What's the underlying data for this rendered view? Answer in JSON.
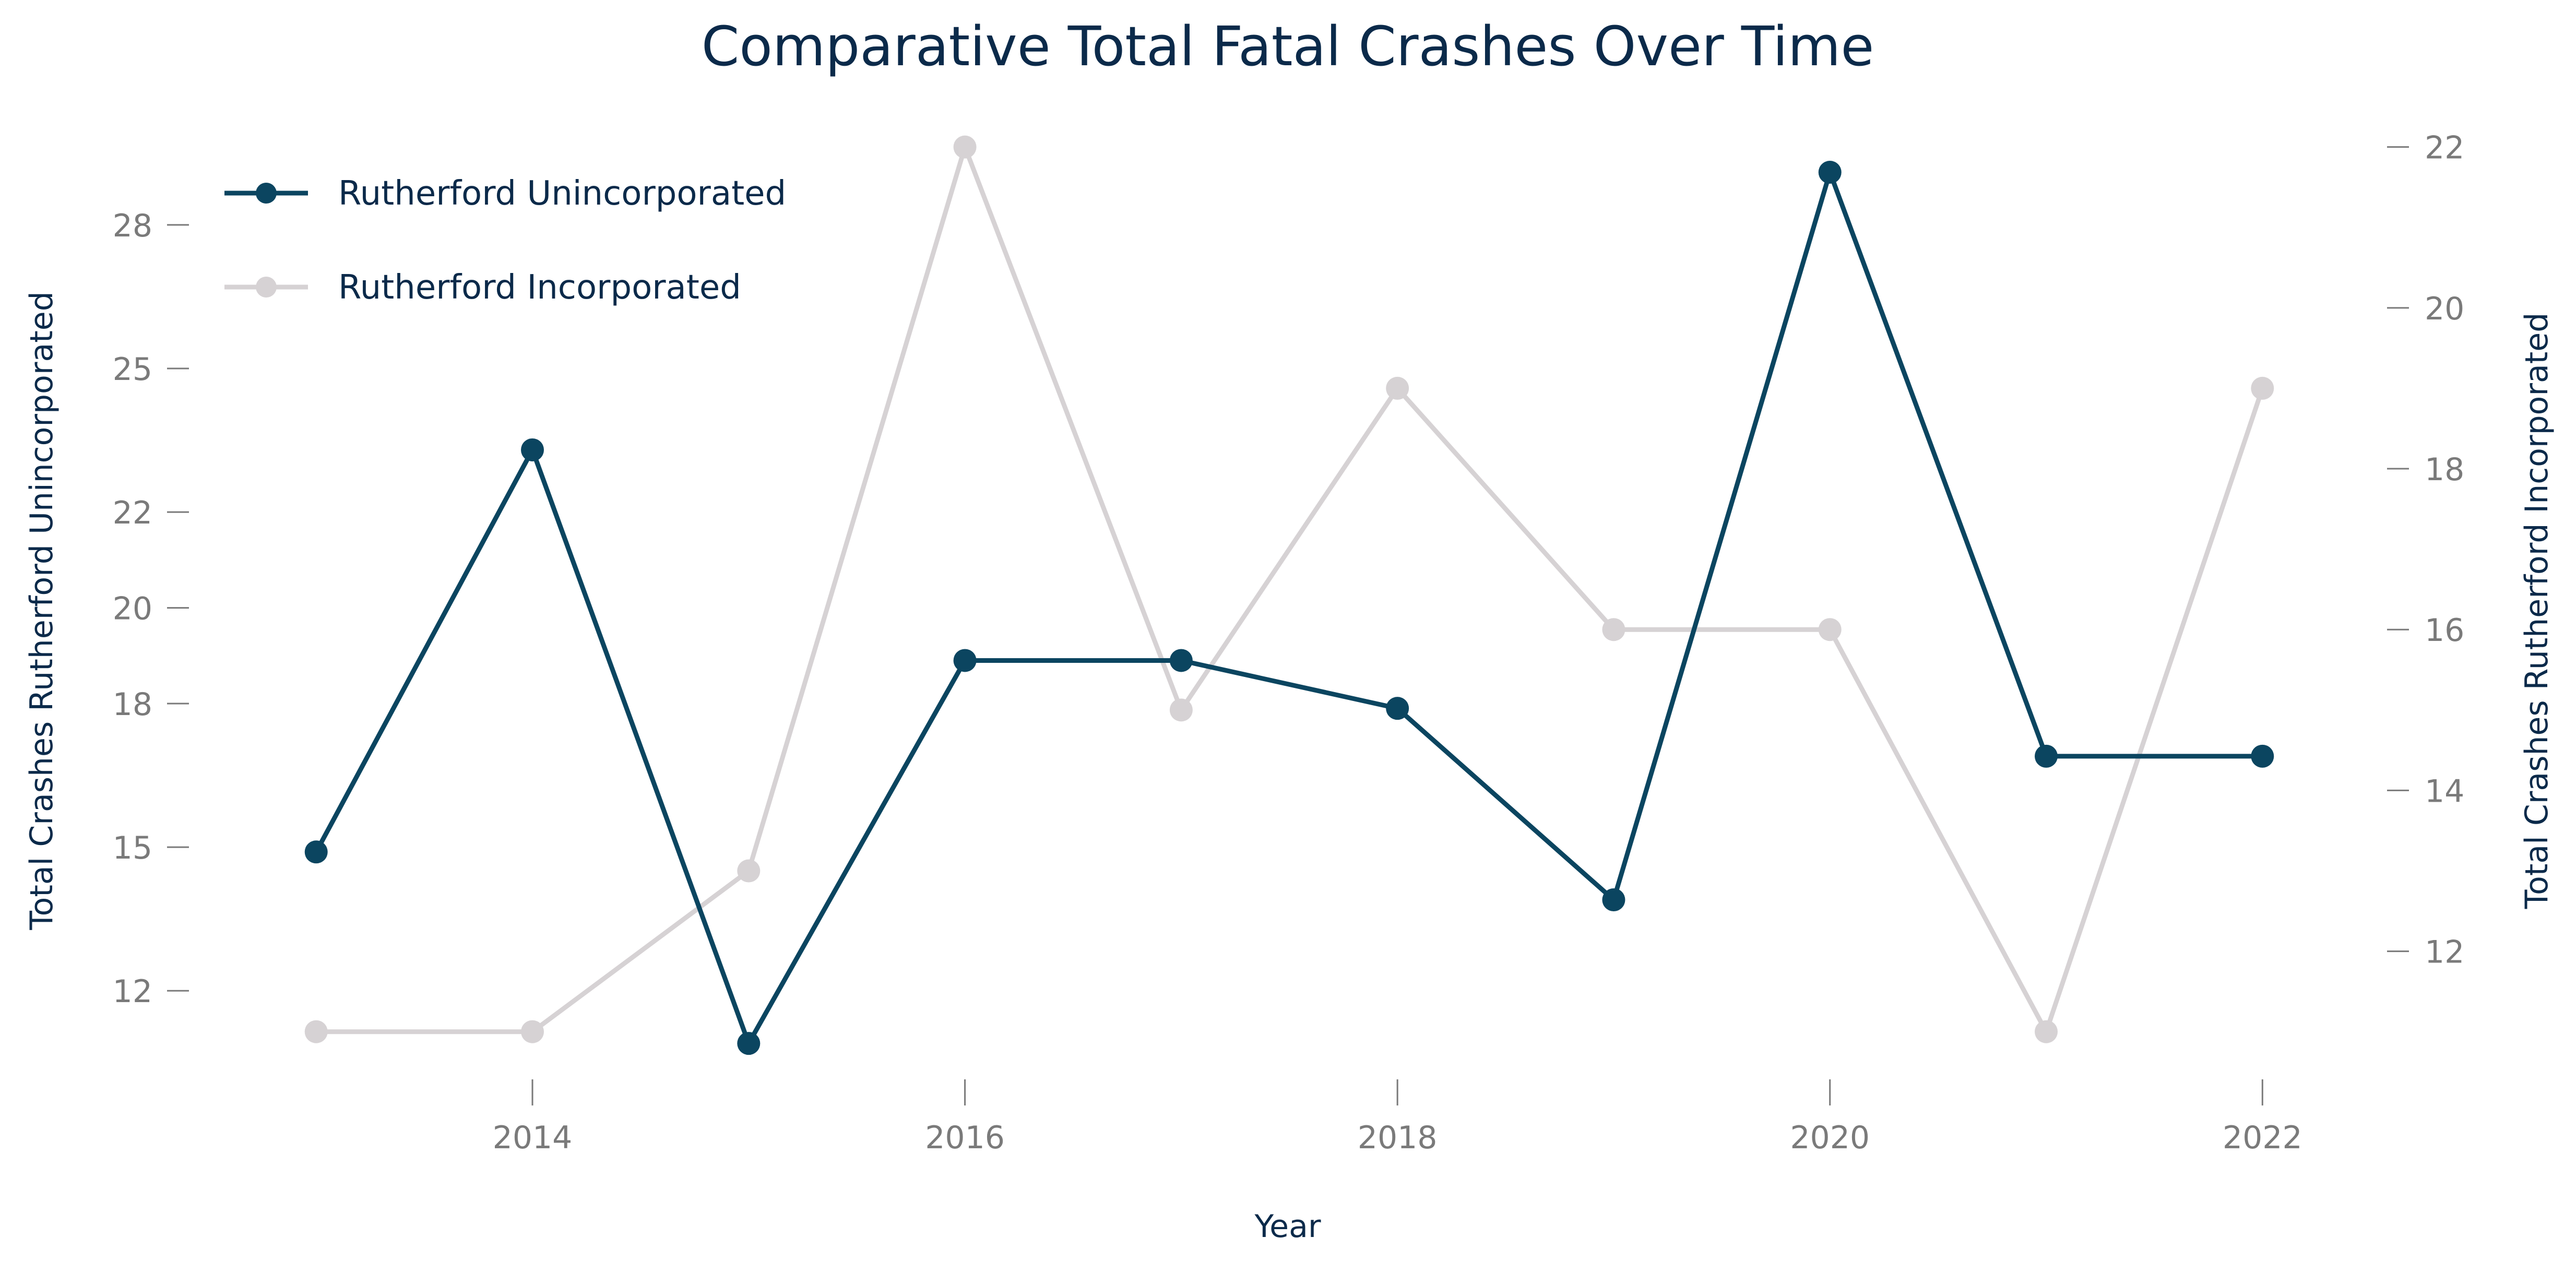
{
  "chart_data": {
    "type": "line",
    "title": "Comparative Total Fatal Crashes Over Time",
    "xlabel": "Year",
    "ylabel_left": "Total Crashes Rutherford Unincorporated",
    "ylabel_right": "Total Crashes Rutherford Incorporated",
    "x": [
      2013,
      2014,
      2015,
      2016,
      2017,
      2018,
      2019,
      2020,
      2021,
      2022
    ],
    "x_ticks": [
      2014,
      2016,
      2018,
      2020,
      2022
    ],
    "xlim": [
      2012.6,
      2022.4
    ],
    "y_left_ticks": [
      12,
      15,
      18,
      20,
      22,
      25,
      28
    ],
    "ylim_left": [
      9.8,
      30.3
    ],
    "y_right_ticks": [
      12,
      14,
      16,
      18,
      20,
      22
    ],
    "ylim_right": [
      10.2,
      22.4
    ],
    "grid": false,
    "legend_position": "top-left",
    "series": [
      {
        "name": "Rutherford Unincorporated",
        "axis": "left",
        "color": "#0b4560",
        "values": [
          14.9,
          23.3,
          10.9,
          18.9,
          18.9,
          17.9,
          13.9,
          29.1,
          16.9,
          16.9
        ]
      },
      {
        "name": "Rutherford Incorporated",
        "axis": "right",
        "color": "#d6d2d4",
        "values": [
          11,
          11,
          13,
          22,
          15,
          19,
          16,
          16,
          11,
          19
        ]
      }
    ]
  },
  "colors": {
    "title": "#0b2a4a",
    "tick_text": "#7a7a7a",
    "axis_label": "#0b2a4a"
  }
}
